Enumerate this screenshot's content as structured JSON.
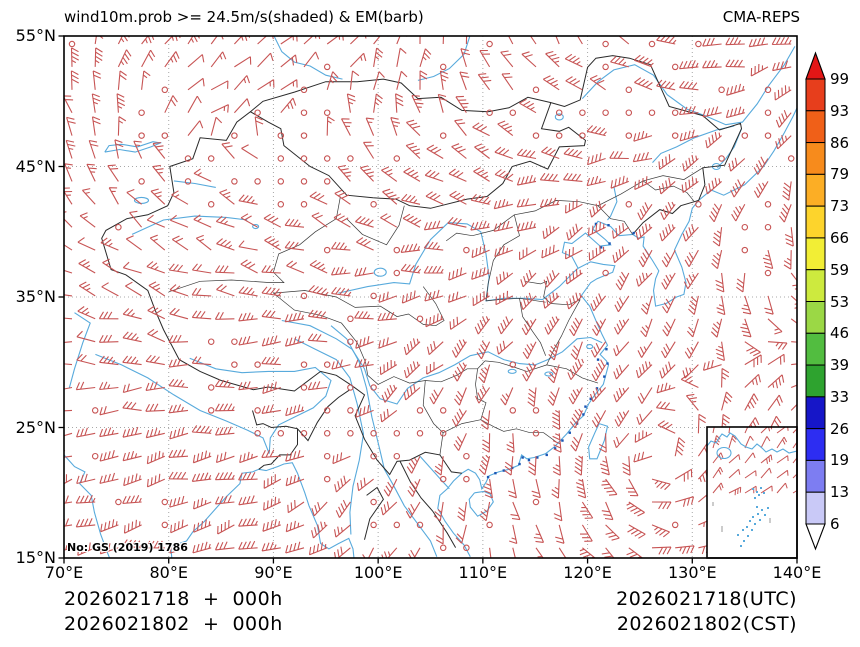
{
  "header": {
    "title": "wind10m.prob >= 24.5m/s(shaded) & EM(barb)",
    "model_label": "CMA-REPS"
  },
  "axes": {
    "x_tick_labels": [
      "70°E",
      "80°E",
      "90°E",
      "100°E",
      "110°E",
      "120°E",
      "130°E",
      "140°E"
    ],
    "y_tick_labels": [
      "55°N",
      "45°N",
      "35°N",
      "25°N",
      "15°N"
    ],
    "extent": {
      "lon_min": 70,
      "lon_max": 140,
      "lat_min": 15,
      "lat_max": 55
    },
    "gridline_lons": [
      80,
      90,
      100,
      110,
      120,
      130
    ],
    "gridline_lats": [
      25,
      35,
      45
    ]
  },
  "map_note": "No: GS (2019) 1786",
  "colorbar": {
    "tick_labels": [
      "99",
      "93",
      "86",
      "79",
      "73",
      "66",
      "59",
      "53",
      "46",
      "39",
      "33",
      "26",
      "19",
      "13",
      "6"
    ],
    "segment_colors_top_to_bottom": [
      "#e73e1c",
      "#f06018",
      "#f78b1c",
      "#fcae25",
      "#fdd42c",
      "#f2ee35",
      "#cdea3e",
      "#9bd845",
      "#52bd40",
      "#2ea32f",
      "#1616c8",
      "#2d2df2",
      "#7d7df2",
      "#c9c9f7"
    ],
    "extend_above_color": "#e31616",
    "extend_below_color": "#ffffff"
  },
  "footer": {
    "left_line1": "2026021718  +  000h",
    "left_line2": "2026021802  +  000h",
    "right_line1": "2026021718(UTC)",
    "right_line2": "2026021802(CST)"
  },
  "style": {
    "barb_color": "#c75454",
    "coast_color": "#58aadc",
    "coast_dot_color": "#1a56b4",
    "border_color": "#2a2a2a",
    "grid_color": "#a8a8a8"
  }
}
